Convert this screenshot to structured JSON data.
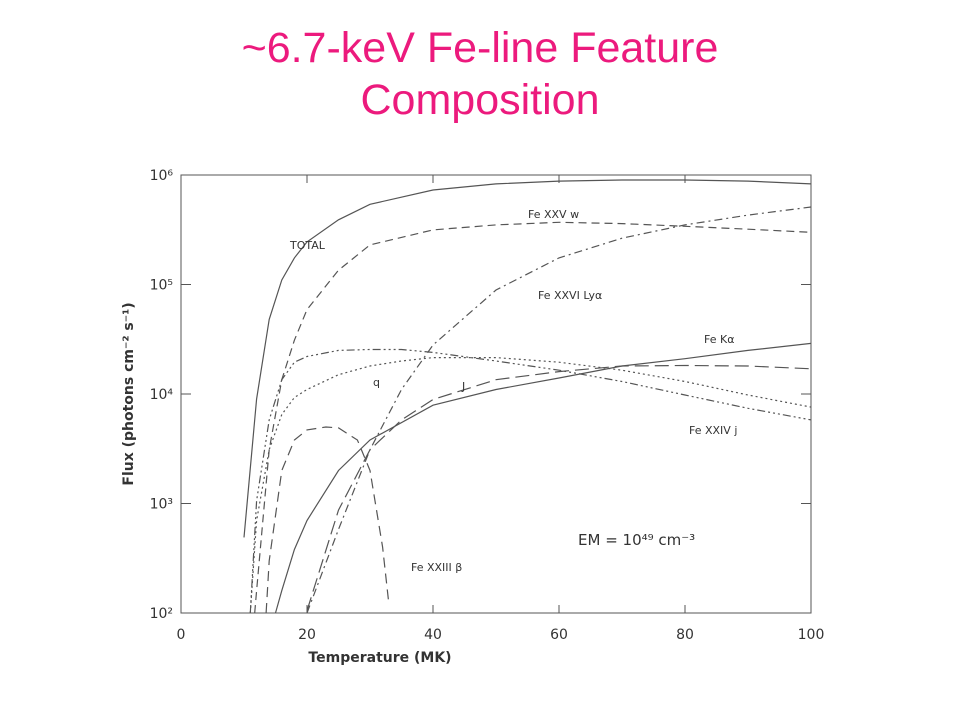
{
  "chart_data": {
    "type": "line",
    "title": "~6.7-keV Fe-line Feature Composition",
    "title_color": "#ec1a7d",
    "x_label": "Temperature (MK)",
    "y_label": "Flux (photons cm⁻² s⁻¹)",
    "annotation": "EM = 10⁴⁹ cm⁻³",
    "xlim": [
      0,
      100
    ],
    "xticks": [
      0,
      20,
      40,
      60,
      80,
      100
    ],
    "ylim": [
      100,
      1000000
    ],
    "log_y": true,
    "yticks": [
      {
        "value": 100,
        "label": "10²"
      },
      {
        "value": 1000,
        "label": "10³"
      },
      {
        "value": 10000,
        "label": "10⁴"
      },
      {
        "value": 100000,
        "label": "10⁵"
      },
      {
        "value": 1000000,
        "label": "10⁶"
      }
    ],
    "line_color": "#555555",
    "series": [
      {
        "name": "TOTAL",
        "dash": "none",
        "x": [
          10,
          12,
          14,
          16,
          18,
          20,
          25,
          30,
          40,
          50,
          60,
          70,
          80,
          90,
          100
        ],
        "values": [
          490,
          9000,
          48000,
          110000,
          175000,
          245000,
          390000,
          540000,
          730000,
          830000,
          880000,
          900000,
          900000,
          880000,
          830000
        ]
      },
      {
        "name": "Fe XXV w",
        "dash": "8,5",
        "x": [
          11.7,
          12,
          14,
          16,
          18,
          20,
          25,
          30,
          40,
          50,
          60,
          70,
          80,
          90,
          100
        ],
        "values": [
          100,
          160,
          3100,
          13500,
          31000,
          59000,
          135000,
          230000,
          315000,
          350000,
          370000,
          360000,
          340000,
          320000,
          300000
        ]
      },
      {
        "name": "Fe XXVI Lyα",
        "dash": "8,4,2,4",
        "x": [
          20,
          25,
          30,
          35,
          40,
          50,
          60,
          70,
          80,
          90,
          100
        ],
        "values": [
          100,
          580,
          3100,
          11000,
          28000,
          89000,
          175000,
          265000,
          350000,
          430000,
          510000
        ]
      },
      {
        "name": "Fe Kα",
        "dash": "none",
        "x": [
          15,
          16,
          18,
          20,
          25,
          30,
          40,
          50,
          60,
          70,
          80,
          90,
          100
        ],
        "values": [
          100,
          160,
          380,
          700,
          2000,
          3800,
          7900,
          11000,
          14000,
          18000,
          21000,
          25000,
          29000
        ]
      },
      {
        "name": "q",
        "dash": "2,3",
        "x": [
          11,
          12,
          14,
          16,
          18,
          20,
          25,
          30,
          35,
          40,
          50,
          60,
          70,
          80,
          90,
          100
        ],
        "values": [
          100,
          700,
          3100,
          6500,
          9300,
          11000,
          15000,
          18000,
          20000,
          21500,
          21500,
          19500,
          16500,
          13000,
          9800,
          7600
        ]
      },
      {
        "name": "J",
        "dash": "14,6",
        "x": [
          20,
          25,
          30,
          35,
          40,
          50,
          60,
          70,
          80,
          90,
          100
        ],
        "values": [
          105,
          870,
          3100,
          5800,
          8900,
          13500,
          16000,
          18000,
          18200,
          18000,
          17000
        ]
      },
      {
        "name": "Fe XXIV j",
        "dash": "8,3,2,3,2,3,2,3",
        "x": [
          11,
          12,
          14,
          16,
          18,
          20,
          25,
          30,
          35,
          40,
          50,
          60,
          70,
          80,
          90,
          100
        ],
        "values": [
          100,
          1060,
          5800,
          13500,
          19500,
          22000,
          25000,
          25500,
          25500,
          24000,
          20000,
          16500,
          13000,
          9800,
          7400,
          5800
        ]
      },
      {
        "name": "Fe XXIII β",
        "dash": "10,6",
        "x": [
          13.5,
          14,
          16,
          18,
          20,
          23,
          25,
          28,
          30,
          32,
          33
        ],
        "values": [
          100,
          300,
          2000,
          3800,
          4700,
          5000,
          4900,
          3800,
          2000,
          400,
          120
        ]
      }
    ]
  }
}
